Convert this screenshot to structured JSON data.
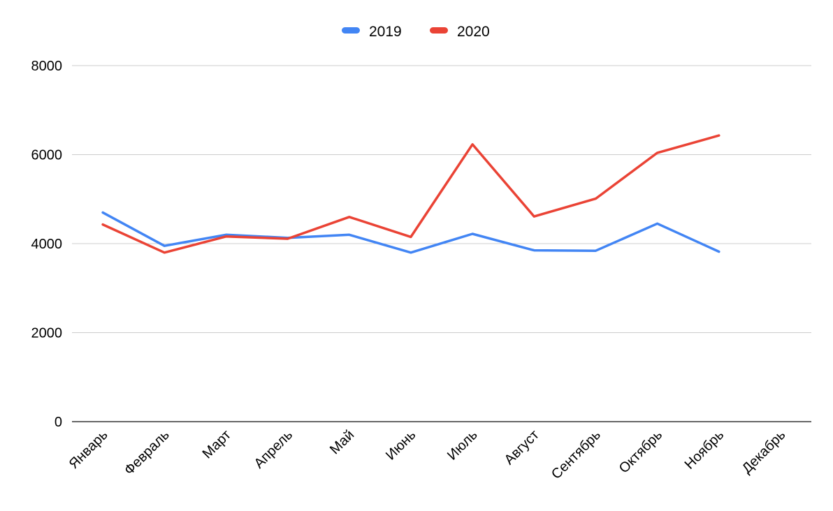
{
  "chart_data": {
    "type": "line",
    "title": "",
    "xlabel": "",
    "ylabel": "",
    "categories": [
      "Январь",
      "Февраль",
      "Март",
      "Апрель",
      "Май",
      "Июнь",
      "Июль",
      "Август",
      "Сентябрь",
      "Октябрь",
      "Ноябрь",
      "Декабрь"
    ],
    "ylim": [
      0,
      8000
    ],
    "yticks": [
      "0",
      "2000",
      "4000",
      "6000",
      "8000"
    ],
    "grid": true,
    "legend_position": "top-center",
    "series": [
      {
        "name": "2019",
        "color": "#4285f4",
        "values": [
          4700,
          3950,
          4200,
          4130,
          4200,
          3800,
          4220,
          3850,
          3840,
          4450,
          3820,
          null
        ]
      },
      {
        "name": "2020",
        "color": "#ea4335",
        "values": [
          4430,
          3800,
          4160,
          4110,
          4600,
          4150,
          6230,
          4610,
          5010,
          6040,
          6430,
          null
        ]
      }
    ]
  }
}
